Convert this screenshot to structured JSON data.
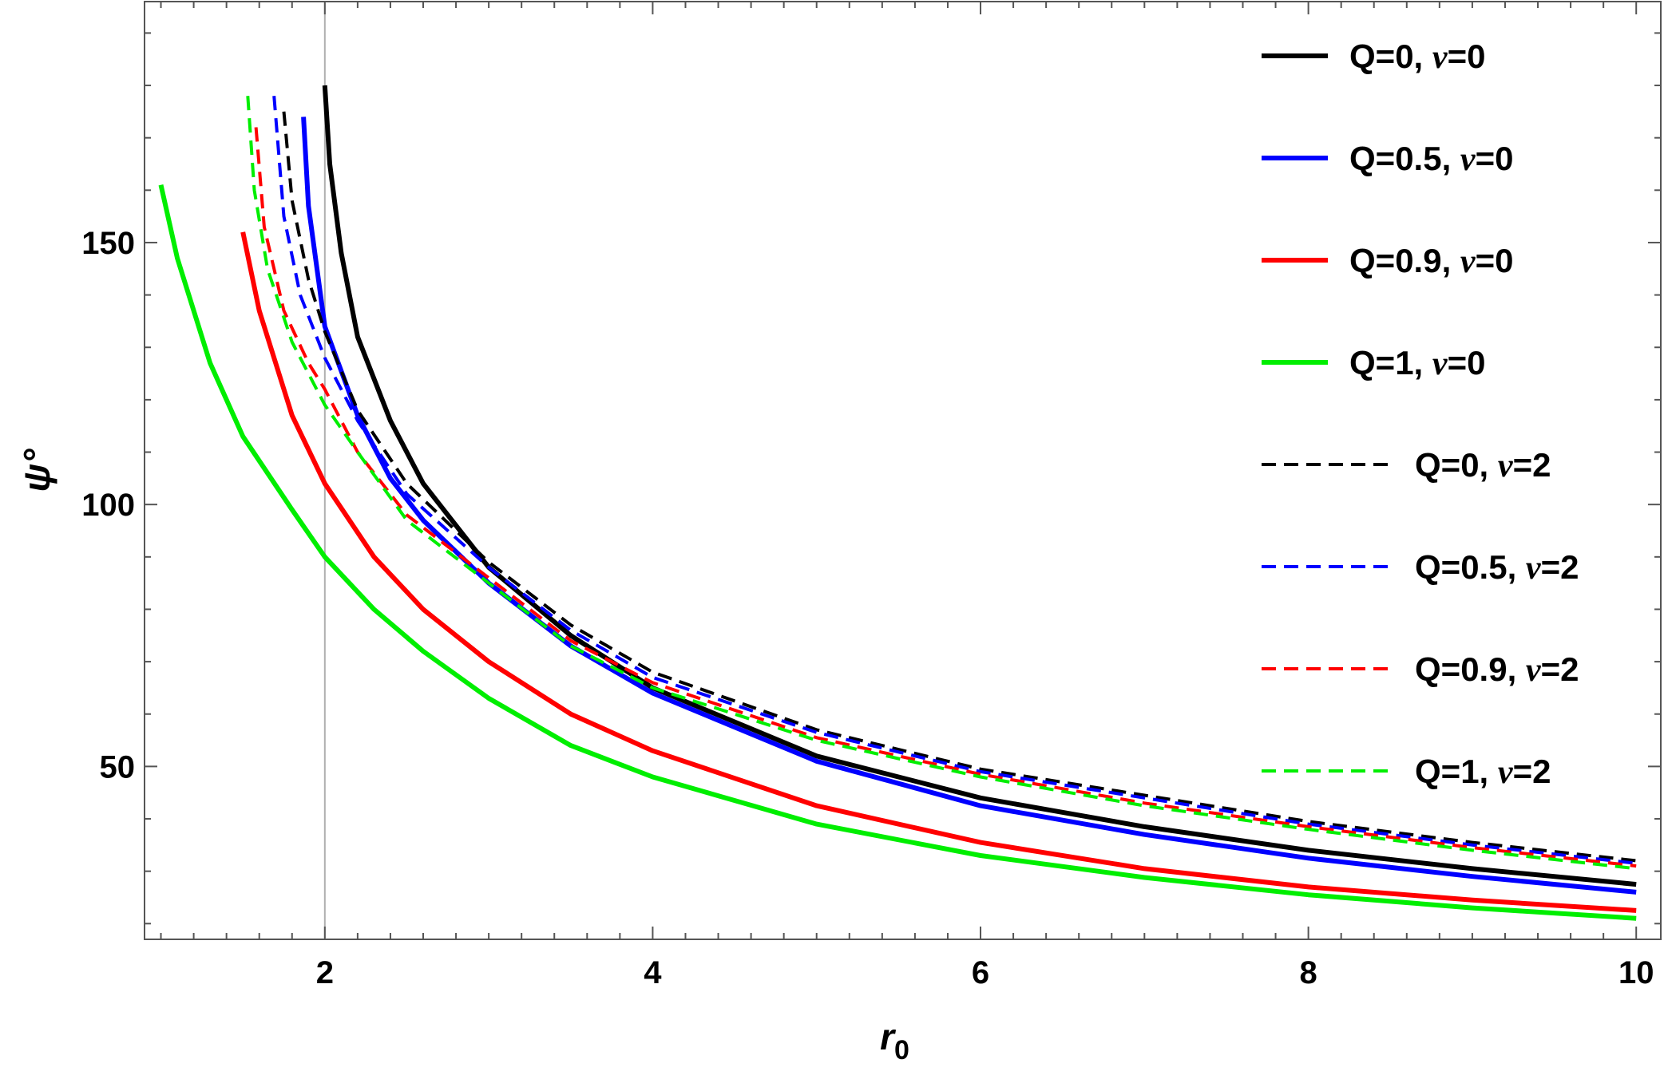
{
  "chart_data": {
    "type": "line",
    "title": "",
    "xlabel": "r",
    "xlabel_subscript": "0",
    "ylabel": "ψ°",
    "xlim": [
      0.9,
      10.15
    ],
    "ylim": [
      17,
      196
    ],
    "x_major_ticks": [
      2,
      4,
      6,
      8,
      10
    ],
    "x_tick_labels": [
      "2",
      "4",
      "6",
      "8",
      "10"
    ],
    "y_major_ticks": [
      50,
      100,
      150
    ],
    "y_tick_labels": [
      "50",
      "100",
      "150"
    ],
    "x_minor_step": 0.2,
    "y_minor_step": 10,
    "vertical_reference_line": 2,
    "grid": false,
    "legend_position": "right",
    "series": [
      {
        "name": "Q=0, ν=0",
        "name_prefix": "Q=0, ",
        "name_greek": "ν",
        "name_suffix": "=0",
        "color": "#000000",
        "dashed": false,
        "x": [
          2.0,
          2.03,
          2.1,
          2.2,
          2.4,
          2.6,
          3.0,
          3.5,
          4.0,
          5.0,
          6.0,
          7.0,
          8.0,
          9.0,
          10.0
        ],
        "y": [
          180.0,
          165.0,
          148.0,
          132.0,
          116.0,
          104.0,
          88.0,
          75.0,
          65.0,
          52.0,
          44.0,
          38.5,
          34.0,
          30.5,
          27.5
        ]
      },
      {
        "name": "Q=0.5, ν=0",
        "name_prefix": "Q=0.5, ",
        "name_greek": "ν",
        "name_suffix": "=0",
        "color": "#0000ff",
        "dashed": false,
        "x": [
          1.87,
          1.9,
          2.0,
          2.2,
          2.4,
          2.6,
          3.0,
          3.5,
          4.0,
          5.0,
          6.0,
          7.0,
          8.0,
          9.0,
          10.0
        ],
        "y": [
          174.0,
          157.0,
          134.0,
          117.0,
          105.0,
          97.0,
          85.0,
          73.0,
          64.0,
          51.0,
          42.5,
          37.0,
          32.5,
          29.0,
          26.0
        ]
      },
      {
        "name": "Q=0.9, ν=0",
        "name_prefix": "Q=0.9, ",
        "name_greek": "ν",
        "name_suffix": "=0",
        "color": "#ff0000",
        "dashed": false,
        "x": [
          1.5,
          1.6,
          1.8,
          2.0,
          2.3,
          2.6,
          3.0,
          3.5,
          4.0,
          5.0,
          6.0,
          7.0,
          8.0,
          9.0,
          10.0
        ],
        "y": [
          152.0,
          137.0,
          117.0,
          104.0,
          90.0,
          80.0,
          70.0,
          60.0,
          53.0,
          42.5,
          35.5,
          30.5,
          27.0,
          24.5,
          22.5
        ]
      },
      {
        "name": "Q=1, ν=0",
        "name_prefix": "Q=1, ",
        "name_greek": "ν",
        "name_suffix": "=0",
        "color": "#00ee00",
        "dashed": false,
        "x": [
          1.0,
          1.1,
          1.3,
          1.5,
          1.8,
          2.0,
          2.3,
          2.6,
          3.0,
          3.5,
          4.0,
          5.0,
          6.0,
          7.0,
          8.0,
          9.0,
          10.0
        ],
        "y": [
          161.0,
          147.0,
          127.0,
          113.0,
          99.0,
          90.0,
          80.0,
          72.0,
          63.0,
          54.0,
          48.0,
          39.0,
          33.0,
          28.8,
          25.5,
          23.0,
          21.0
        ]
      },
      {
        "name": "Q=0, ν=2",
        "name_prefix": "Q=0, ",
        "name_greek": "ν",
        "name_suffix": "=2",
        "color": "#000000",
        "dashed": true,
        "x": [
          1.75,
          1.8,
          1.9,
          2.0,
          2.2,
          2.5,
          3.0,
          3.5,
          4.0,
          5.0,
          6.0,
          7.0,
          8.0,
          9.0,
          10.0
        ],
        "y": [
          175.0,
          158.0,
          143.0,
          133.0,
          118.0,
          104.0,
          89.0,
          77.0,
          68.0,
          57.0,
          49.5,
          44.5,
          39.5,
          35.5,
          32.0
        ]
      },
      {
        "name": "Q=0.5, ν=2",
        "name_prefix": "Q=0.5, ",
        "name_greek": "ν",
        "name_suffix": "=2",
        "color": "#0000ff",
        "dashed": true,
        "x": [
          1.69,
          1.75,
          1.85,
          2.0,
          2.2,
          2.5,
          3.0,
          3.5,
          4.0,
          5.0,
          6.0,
          7.0,
          8.0,
          9.0,
          10.0
        ],
        "y": [
          178.0,
          155.0,
          140.0,
          128.0,
          116.0,
          102.0,
          88.0,
          76.0,
          67.0,
          56.5,
          49.0,
          44.0,
          39.0,
          35.0,
          31.5
        ]
      },
      {
        "name": "Q=0.9, ν=2",
        "name_prefix": "Q=0.9, ",
        "name_greek": "ν",
        "name_suffix": "=2",
        "color": "#ff0000",
        "dashed": true,
        "x": [
          1.58,
          1.63,
          1.75,
          1.9,
          2.0,
          2.2,
          2.5,
          3.0,
          3.5,
          4.0,
          5.0,
          6.0,
          7.0,
          8.0,
          9.0,
          10.0
        ],
        "y": [
          172.0,
          153.0,
          137.0,
          127.0,
          122.0,
          110.0,
          98.0,
          86.0,
          74.0,
          66.0,
          55.5,
          48.5,
          43.0,
          38.5,
          34.5,
          31.0
        ]
      },
      {
        "name": "Q=1, ν=2",
        "name_prefix": "Q=1, ",
        "name_greek": "ν",
        "name_suffix": "=2",
        "color": "#00ee00",
        "dashed": true,
        "x": [
          1.53,
          1.57,
          1.65,
          1.8,
          2.0,
          2.2,
          2.5,
          3.0,
          3.5,
          4.0,
          5.0,
          6.0,
          7.0,
          8.0,
          9.0,
          10.0
        ],
        "y": [
          178.0,
          160.0,
          145.0,
          131.0,
          119.0,
          110.0,
          97.0,
          85.0,
          73.0,
          65.0,
          55.0,
          48.0,
          42.5,
          38.0,
          34.0,
          30.5
        ]
      }
    ]
  }
}
